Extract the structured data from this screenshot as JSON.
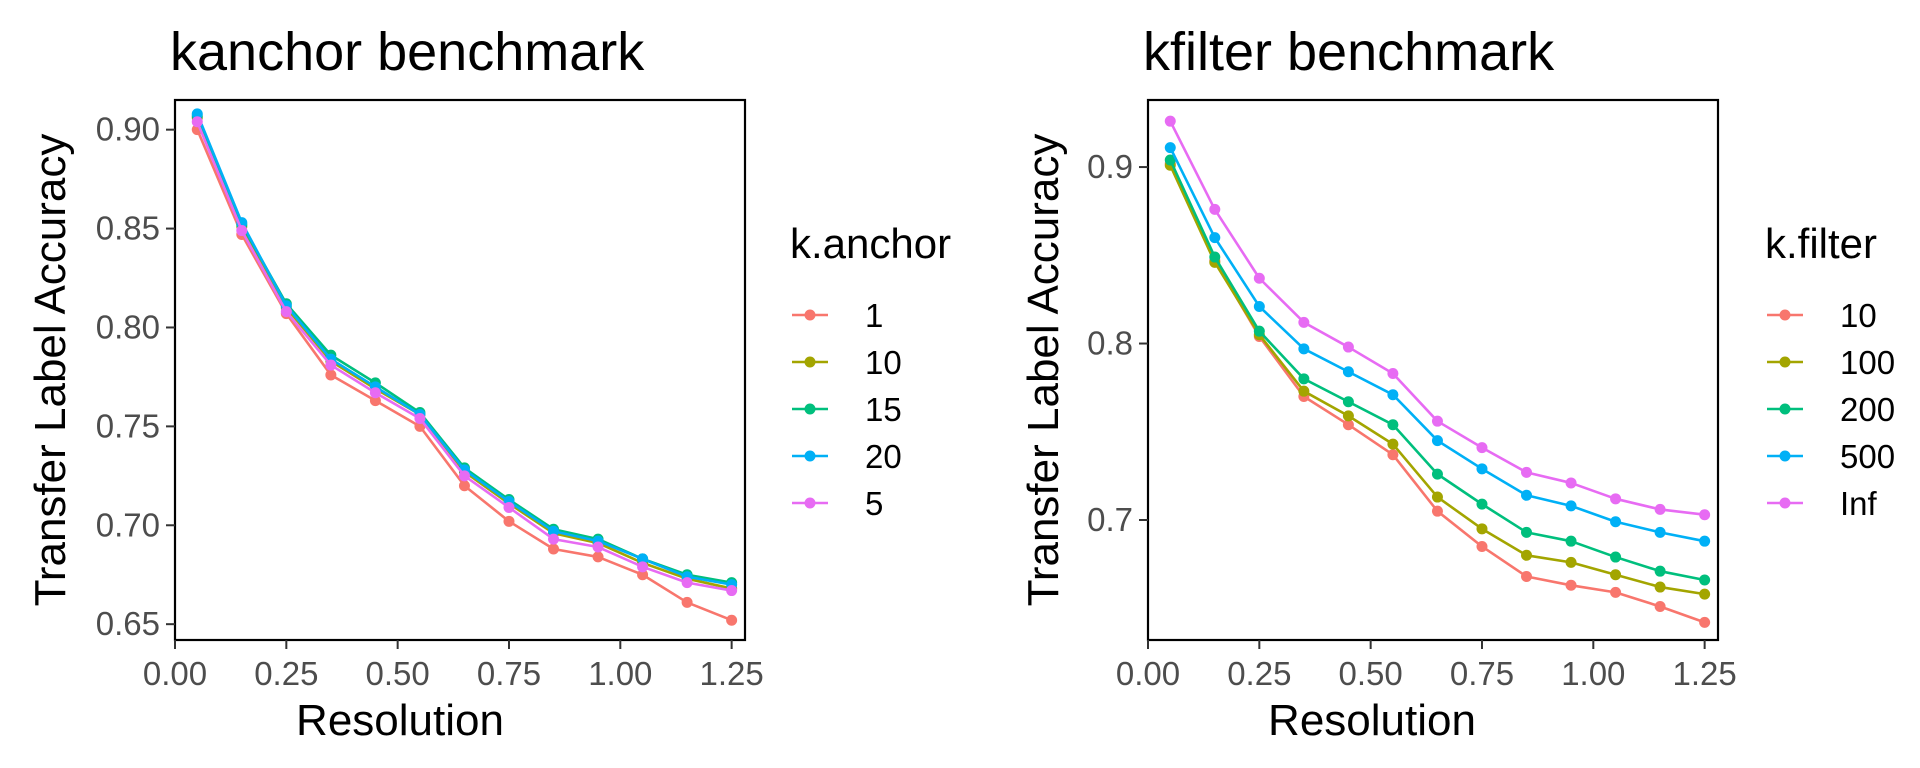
{
  "chart_data": [
    {
      "type": "line",
      "title": "kanchor benchmark",
      "xlabel": "Resolution",
      "ylabel": "Transfer Label Accuracy",
      "xlim": [
        0.0,
        1.28
      ],
      "ylim": [
        0.642,
        0.915
      ],
      "x_ticks": [
        0.0,
        0.25,
        0.5,
        0.75,
        1.0,
        1.25
      ],
      "x_tick_labels": [
        "0.00",
        "0.25",
        "0.50",
        "0.75",
        "1.00",
        "1.25"
      ],
      "y_ticks": [
        0.65,
        0.7,
        0.75,
        0.8,
        0.85,
        0.9
      ],
      "y_tick_labels": [
        "0.65",
        "0.70",
        "0.75",
        "0.80",
        "0.85",
        "0.90"
      ],
      "grid": false,
      "legend_position": "right",
      "legend_title": "k.anchor",
      "x": [
        0.05,
        0.15,
        0.25,
        0.35,
        0.45,
        0.55,
        0.65,
        0.75,
        0.85,
        0.95,
        1.05,
        1.15,
        1.25
      ],
      "series": [
        {
          "name": "1",
          "color": "#F8766D",
          "values": [
            0.9,
            0.847,
            0.807,
            0.776,
            0.763,
            0.75,
            0.72,
            0.702,
            0.688,
            0.684,
            0.675,
            0.661,
            0.652
          ]
        },
        {
          "name": "10",
          "color": "#A3A500",
          "values": [
            0.906,
            0.851,
            0.81,
            0.783,
            0.769,
            0.756,
            0.727,
            0.711,
            0.696,
            0.691,
            0.681,
            0.673,
            0.668
          ]
        },
        {
          "name": "15",
          "color": "#00BF7D",
          "values": [
            0.907,
            0.852,
            0.812,
            0.786,
            0.772,
            0.757,
            0.729,
            0.713,
            0.698,
            0.693,
            0.683,
            0.675,
            0.671
          ]
        },
        {
          "name": "20",
          "color": "#00B0F6",
          "values": [
            0.908,
            0.853,
            0.811,
            0.784,
            0.77,
            0.756,
            0.728,
            0.712,
            0.697,
            0.692,
            0.683,
            0.674,
            0.67
          ]
        },
        {
          "name": "5",
          "color": "#E76BF3",
          "values": [
            0.904,
            0.849,
            0.808,
            0.781,
            0.767,
            0.754,
            0.725,
            0.709,
            0.693,
            0.689,
            0.679,
            0.671,
            0.667
          ]
        }
      ]
    },
    {
      "type": "line",
      "title": "kfilter benchmark",
      "xlabel": "Resolution",
      "ylabel": "Transfer Label Accuracy",
      "xlim": [
        0.0,
        1.28
      ],
      "ylim": [
        0.632,
        0.938
      ],
      "x_ticks": [
        0.0,
        0.25,
        0.5,
        0.75,
        1.0,
        1.25
      ],
      "x_tick_labels": [
        "0.00",
        "0.25",
        "0.50",
        "0.75",
        "1.00",
        "1.25"
      ],
      "y_ticks": [
        0.7,
        0.8,
        0.9
      ],
      "y_tick_labels": [
        "0.7",
        "0.8",
        "0.9"
      ],
      "grid": false,
      "legend_position": "right",
      "legend_title": "k.filter",
      "x": [
        0.05,
        0.15,
        0.25,
        0.35,
        0.45,
        0.55,
        0.65,
        0.75,
        0.85,
        0.95,
        1.05,
        1.15,
        1.25
      ],
      "series": [
        {
          "name": "10",
          "color": "#F8766D",
          "values": [
            0.902,
            0.847,
            0.804,
            0.77,
            0.754,
            0.737,
            0.705,
            0.685,
            0.668,
            0.663,
            0.659,
            0.651,
            0.642
          ]
        },
        {
          "name": "100",
          "color": "#A3A500",
          "values": [
            0.901,
            0.846,
            0.805,
            0.773,
            0.759,
            0.743,
            0.713,
            0.695,
            0.68,
            0.676,
            0.669,
            0.662,
            0.658
          ]
        },
        {
          "name": "200",
          "color": "#00BF7D",
          "values": [
            0.904,
            0.849,
            0.807,
            0.78,
            0.767,
            0.754,
            0.726,
            0.709,
            0.693,
            0.688,
            0.679,
            0.671,
            0.666
          ]
        },
        {
          "name": "500",
          "color": "#00B0F6",
          "values": [
            0.911,
            0.86,
            0.821,
            0.797,
            0.784,
            0.771,
            0.745,
            0.729,
            0.714,
            0.708,
            0.699,
            0.693,
            0.688
          ]
        },
        {
          "name": "Inf",
          "color": "#E76BF3",
          "values": [
            0.926,
            0.876,
            0.837,
            0.812,
            0.798,
            0.783,
            0.756,
            0.741,
            0.727,
            0.721,
            0.712,
            0.706,
            0.703
          ]
        }
      ]
    }
  ]
}
